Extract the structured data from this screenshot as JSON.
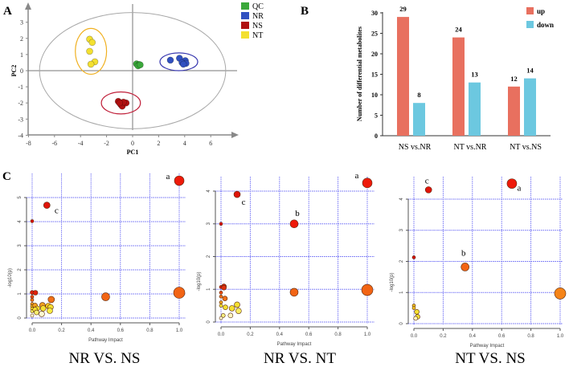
{
  "panel_labels": {
    "a": "A",
    "b": "B",
    "c": "C"
  },
  "chart_data": [
    {
      "id": "pca",
      "type": "scatter",
      "title": "",
      "xlabel": "PC1",
      "ylabel": "PC2",
      "xlim": [
        -8,
        7
      ],
      "ylim": [
        -4,
        3.5
      ],
      "xticks": [
        -8,
        -6,
        -4,
        -2,
        0,
        2,
        4,
        6
      ],
      "yticks": [
        -4,
        -3,
        -2,
        -1,
        0,
        1,
        2,
        3
      ],
      "legend_position": "top-right",
      "confidence_ellipse": {
        "center": [
          0,
          0
        ],
        "radii": [
          7.15,
          3.6
        ],
        "color": "#a8a8a8"
      },
      "series": [
        {
          "name": "QC",
          "color": "#3aa83a",
          "ellipse": null,
          "points": [
            [
              0.3,
              0.42
            ],
            [
              0.5,
              0.38
            ],
            [
              0.42,
              0.3
            ],
            [
              0.58,
              0.36
            ]
          ]
        },
        {
          "name": "NR",
          "color": "#3050c0",
          "ellipse": {
            "center": [
              3.55,
              0.55
            ],
            "radii": [
              1.45,
              0.55
            ],
            "color": "#3a3ab0"
          },
          "points": [
            [
              2.9,
              0.65
            ],
            [
              3.6,
              0.77
            ],
            [
              4.05,
              0.62
            ],
            [
              3.8,
              0.5
            ],
            [
              4.1,
              0.45
            ],
            [
              3.9,
              0.4
            ]
          ]
        },
        {
          "name": "NS",
          "color": "#b01010",
          "ellipse": {
            "center": [
              -0.9,
              -2.0
            ],
            "radii": [
              1.5,
              0.68
            ],
            "color": "#c0203a"
          },
          "points": [
            [
              -1.1,
              -1.9
            ],
            [
              -0.9,
              -2.1
            ],
            [
              -0.8,
              -2.2
            ],
            [
              -0.5,
              -2.0
            ],
            [
              -0.7,
              -1.95
            ],
            [
              -1.0,
              -2.0
            ]
          ]
        },
        {
          "name": "NT",
          "color": "#f3e030",
          "ellipse": {
            "center": [
              -3.2,
              1.2
            ],
            "radii": [
              1.2,
              1.42
            ],
            "color": "#f0b020"
          },
          "points": [
            [
              -3.3,
              1.95
            ],
            [
              -3.1,
              1.75
            ],
            [
              -3.3,
              1.2
            ],
            [
              -2.9,
              0.55
            ],
            [
              -3.2,
              0.4
            ]
          ]
        }
      ]
    },
    {
      "id": "bars",
      "type": "bar",
      "title": "",
      "xlabel": "",
      "ylabel": "Number of differential metabolites",
      "ylim": [
        0,
        30
      ],
      "yticks": [
        0,
        5,
        10,
        15,
        20,
        25,
        30
      ],
      "categories": [
        "NS vs.NR",
        "NT vs.NR",
        "NT vs.NS"
      ],
      "legend_position": "top-right",
      "series": [
        {
          "name": "up",
          "color": "#e8705f",
          "values": [
            29,
            24,
            12
          ]
        },
        {
          "name": "down",
          "color": "#6cc8e0",
          "values": [
            8,
            13,
            14
          ]
        }
      ]
    },
    {
      "id": "pathway-nr-ns",
      "type": "scatter",
      "title": "NR VS. NS",
      "xlabel": "Pathway Impact",
      "ylabel": "-log10(p)",
      "xlim": [
        0,
        1
      ],
      "ylim": [
        0,
        5.9
      ],
      "xticks": [
        "0.0",
        "0.2",
        "0.4",
        "0.6",
        "0.8",
        "1.0"
      ],
      "yticks": [
        0,
        1,
        2,
        3,
        4,
        5
      ],
      "points": [
        {
          "x": 1.0,
          "y": 5.7,
          "size": 6,
          "color": "#ee1a0a",
          "label": "a"
        },
        {
          "x": 0.1,
          "y": 4.68,
          "size": 4,
          "color": "#e0140a",
          "label": "c"
        },
        {
          "x": 0.0,
          "y": 4.02,
          "size": 2,
          "color": "#d8100a"
        },
        {
          "x": 0.0,
          "y": 1.06,
          "size": 2.5,
          "color": "#e0200a"
        },
        {
          "x": 0.022,
          "y": 1.05,
          "size": 3,
          "color": "#e0200a"
        },
        {
          "x": 0.0,
          "y": 0.88,
          "size": 2,
          "color": "#e84a10"
        },
        {
          "x": 0.0,
          "y": 0.75,
          "size": 2,
          "color": "#f07018"
        },
        {
          "x": 0.13,
          "y": 0.77,
          "size": 4,
          "color": "#f07018"
        },
        {
          "x": 0.5,
          "y": 0.88,
          "size": 5,
          "color": "#f26414"
        },
        {
          "x": 1.0,
          "y": 1.05,
          "size": 7,
          "color": "#f26414"
        },
        {
          "x": 0.0,
          "y": 0.58,
          "size": 2,
          "color": "#f09a20"
        },
        {
          "x": 0.0,
          "y": 0.48,
          "size": 2,
          "color": "#f0c020"
        },
        {
          "x": 0.0,
          "y": 0.38,
          "size": 2,
          "color": "#f5e030"
        },
        {
          "x": 0.0,
          "y": 0.28,
          "size": 2,
          "color": "#f8f060"
        },
        {
          "x": 0.0,
          "y": 0.1,
          "size": 2,
          "color": "#fffbd0"
        },
        {
          "x": 0.02,
          "y": 0.52,
          "size": 3,
          "color": "#f0a020"
        },
        {
          "x": 0.07,
          "y": 0.53,
          "size": 3.5,
          "color": "#f0a020"
        },
        {
          "x": 0.11,
          "y": 0.5,
          "size": 3.5,
          "color": "#f5c820"
        },
        {
          "x": 0.125,
          "y": 0.45,
          "size": 3.5,
          "color": "#f5e030"
        },
        {
          "x": 0.075,
          "y": 0.4,
          "size": 3.5,
          "color": "#f5e030"
        },
        {
          "x": 0.035,
          "y": 0.4,
          "size": 3,
          "color": "#f5e030"
        },
        {
          "x": 0.02,
          "y": 0.35,
          "size": 3,
          "color": "#f5e030"
        },
        {
          "x": 0.12,
          "y": 0.3,
          "size": 3.5,
          "color": "#f8ec40"
        },
        {
          "x": 0.03,
          "y": 0.23,
          "size": 3,
          "color": "#f8f070"
        },
        {
          "x": 0.065,
          "y": 0.17,
          "size": 3.5,
          "color": "#fffbd0"
        }
      ]
    },
    {
      "id": "pathway-nr-nt",
      "type": "scatter",
      "title": "NR VS. NT",
      "xlabel": "Pathway Impact",
      "ylabel": "-log10(p)",
      "xlim": [
        0,
        1
      ],
      "ylim": [
        0,
        4.5
      ],
      "xticks": [
        "0.0",
        "0.2",
        "0.4",
        "0.6",
        "0.8",
        "1.0"
      ],
      "yticks": [
        0,
        1,
        2,
        3,
        4
      ],
      "points": [
        {
          "x": 1.0,
          "y": 4.25,
          "size": 6,
          "color": "#ee1a0a",
          "label": "a"
        },
        {
          "x": 0.11,
          "y": 3.9,
          "size": 4,
          "color": "#e0140a",
          "label": "c"
        },
        {
          "x": 0.5,
          "y": 3.0,
          "size": 5,
          "color": "#ee1a0a",
          "label": "b"
        },
        {
          "x": 0.0,
          "y": 3.0,
          "size": 2,
          "color": "#d8100a"
        },
        {
          "x": 0.0,
          "y": 1.07,
          "size": 2,
          "color": "#e0200a"
        },
        {
          "x": 0.02,
          "y": 1.09,
          "size": 3,
          "color": "#e0200a"
        },
        {
          "x": 0.02,
          "y": 1.05,
          "size": 3,
          "color": "#e03010"
        },
        {
          "x": 0.0,
          "y": 0.9,
          "size": 2,
          "color": "#e84a10"
        },
        {
          "x": 0.0,
          "y": 0.78,
          "size": 2,
          "color": "#f07018"
        },
        {
          "x": 0.027,
          "y": 0.72,
          "size": 3,
          "color": "#f07018"
        },
        {
          "x": 0.0,
          "y": 0.6,
          "size": 2,
          "color": "#f0a020"
        },
        {
          "x": 0.0,
          "y": 0.5,
          "size": 2,
          "color": "#f5e030"
        },
        {
          "x": 0.5,
          "y": 0.91,
          "size": 5,
          "color": "#f26414"
        },
        {
          "x": 1.0,
          "y": 0.98,
          "size": 7,
          "color": "#f26414"
        },
        {
          "x": 0.03,
          "y": 0.45,
          "size": 3,
          "color": "#f5e030"
        },
        {
          "x": 0.075,
          "y": 0.42,
          "size": 3.5,
          "color": "#f5e030"
        },
        {
          "x": 0.11,
          "y": 0.53,
          "size": 3.5,
          "color": "#f5e030"
        },
        {
          "x": 0.12,
          "y": 0.34,
          "size": 3.5,
          "color": "#f8ec60"
        },
        {
          "x": 0.065,
          "y": 0.2,
          "size": 3,
          "color": "#fff8c0"
        },
        {
          "x": 0.015,
          "y": 0.2,
          "size": 2.5,
          "color": "#f8f080"
        },
        {
          "x": 0.0,
          "y": 0.12,
          "size": 2,
          "color": "#fffbd0"
        }
      ]
    },
    {
      "id": "pathway-nt-ns",
      "type": "scatter",
      "title": "NT VS. NS",
      "xlabel": "Pathway Impact",
      "ylabel": "-log10(p)",
      "xlim": [
        0,
        1
      ],
      "ylim": [
        0,
        4.8
      ],
      "xticks": [
        "0.0",
        "0.2",
        "0.4",
        "0.6",
        "0.8",
        "1.0"
      ],
      "yticks": [
        0,
        1,
        2,
        3,
        4
      ],
      "points": [
        {
          "x": 0.67,
          "y": 4.5,
          "size": 6,
          "color": "#ee1a0a",
          "label": "a"
        },
        {
          "x": 0.1,
          "y": 4.3,
          "size": 4,
          "color": "#e0140a",
          "label": "c"
        },
        {
          "x": 0.0,
          "y": 2.13,
          "size": 2,
          "color": "#d8100a"
        },
        {
          "x": 0.35,
          "y": 1.82,
          "size": 5,
          "color": "#f26414",
          "label": "b"
        },
        {
          "x": 1.0,
          "y": 0.97,
          "size": 7,
          "color": "#f58418"
        },
        {
          "x": 0.0,
          "y": 0.58,
          "size": 2,
          "color": "#f0c020"
        },
        {
          "x": 0.0,
          "y": 0.5,
          "size": 2,
          "color": "#f0c020"
        },
        {
          "x": 0.02,
          "y": 0.38,
          "size": 3,
          "color": "#f5e030"
        },
        {
          "x": 0.025,
          "y": 0.22,
          "size": 3,
          "color": "#f5e030"
        },
        {
          "x": 0.012,
          "y": 0.17,
          "size": 2.5,
          "color": "#fff8c0"
        }
      ]
    }
  ]
}
